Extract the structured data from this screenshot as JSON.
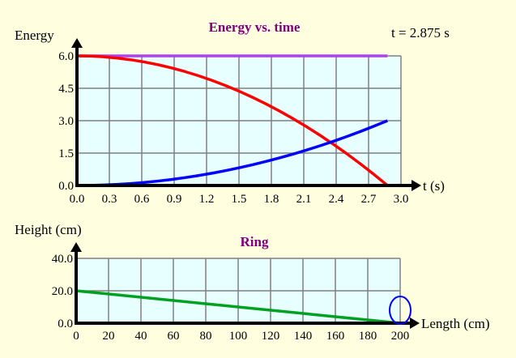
{
  "time_readout": "t = 2.875 s",
  "colors": {
    "background": "#FFFFE0",
    "plot_bg": "#E8FFFF",
    "grid": "#808080",
    "title": "#800080",
    "total": "#B040F0",
    "potential": "#FF0000",
    "kinetic": "#0000FF",
    "ramp": "#00A020",
    "ring": "#0000FF"
  },
  "chart_data": [
    {
      "type": "line",
      "title": "Energy vs. time",
      "xlabel": "t (s)",
      "ylabel": "Energy",
      "xlim": [
        0,
        3.0
      ],
      "ylim": [
        0,
        6.0
      ],
      "grid": true,
      "xticks": [
        "0.0",
        "0.3",
        "0.6",
        "0.9",
        "1.2",
        "1.5",
        "1.8",
        "2.1",
        "2.4",
        "2.7",
        "3.0"
      ],
      "yticks": [
        "0.0",
        "1.5",
        "3.0",
        "4.5",
        "6.0"
      ],
      "x": [
        0,
        0.125,
        0.25,
        0.375,
        0.5,
        0.625,
        0.75,
        0.875,
        1.0,
        1.125,
        1.25,
        1.375,
        1.5,
        1.625,
        1.75,
        1.875,
        2.0,
        2.125,
        2.25,
        2.375,
        2.5,
        2.625,
        2.75,
        2.875
      ],
      "series": [
        {
          "color": "#B040F0",
          "values": [
            6,
            6,
            6,
            6,
            6,
            6,
            6,
            6,
            6,
            6,
            6,
            6,
            6,
            6,
            6,
            6,
            6,
            6,
            6,
            6,
            6,
            6,
            6,
            6
          ]
        },
        {
          "color": "#FF0000",
          "values": [
            6,
            5.989,
            5.955,
            5.898,
            5.819,
            5.716,
            5.592,
            5.444,
            5.274,
            5.081,
            4.866,
            4.628,
            4.367,
            4.083,
            3.777,
            3.448,
            3.096,
            2.722,
            2.325,
            1.905,
            1.463,
            0.998,
            0.51,
            0
          ]
        },
        {
          "color": "#0000FF",
          "values": [
            0,
            0.006,
            0.023,
            0.051,
            0.091,
            0.142,
            0.204,
            0.278,
            0.363,
            0.459,
            0.567,
            0.686,
            0.817,
            0.958,
            1.112,
            1.276,
            1.452,
            1.639,
            1.837,
            2.047,
            2.268,
            2.501,
            2.745,
            3.0
          ]
        }
      ]
    },
    {
      "type": "line",
      "title": "Ring",
      "xlabel": "Length (cm)",
      "ylabel": "Height (cm)",
      "xlim": [
        0,
        200
      ],
      "ylim": [
        0,
        40
      ],
      "grid": true,
      "xticks": [
        "0",
        "20",
        "40",
        "60",
        "80",
        "100",
        "120",
        "140",
        "160",
        "180",
        "200"
      ],
      "yticks": [
        "0.0",
        "20.0",
        "40.0"
      ],
      "series": [
        {
          "color": "#00A020",
          "x": [
            0,
            200
          ],
          "values": [
            20,
            0
          ]
        }
      ],
      "ring_position": {
        "x": 200,
        "y": 0
      }
    }
  ]
}
